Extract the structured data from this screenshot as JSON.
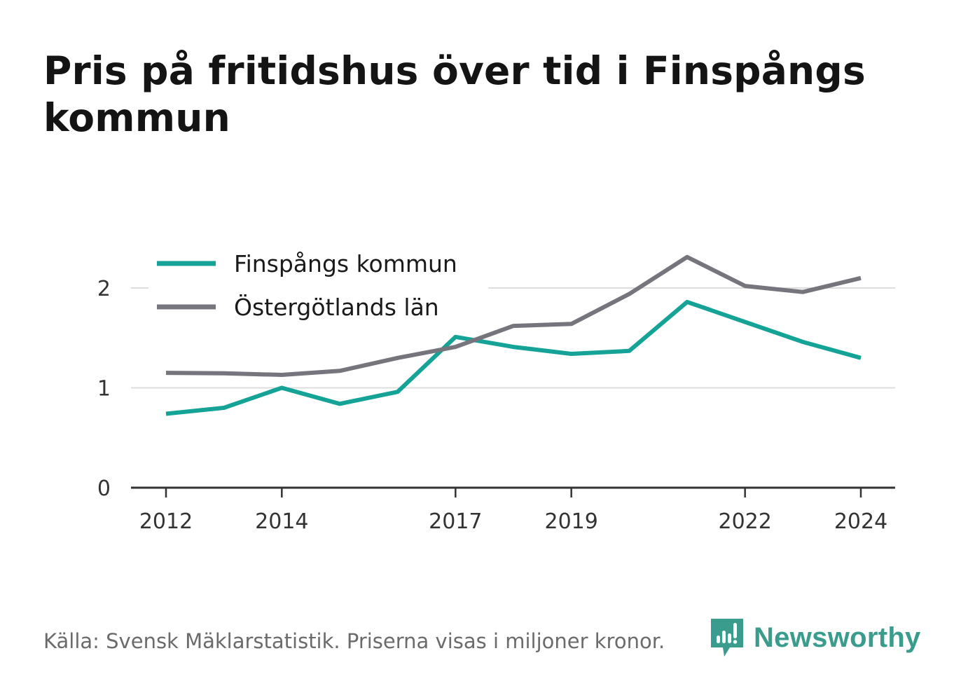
{
  "title": "Pris på fritidshus över tid i Finspångs kommun",
  "source": "Källa: Svensk Mäklarstatistik. Priserna visas i miljoner kronor.",
  "brand": "Newsworthy",
  "colors": {
    "finspang": "#14a396",
    "ostergotland": "#76757d",
    "grid": "#dddddd",
    "axis": "#333333",
    "brand": "#3a9c8d"
  },
  "chart_data": {
    "type": "line",
    "x": [
      2012,
      2013,
      2014,
      2015,
      2016,
      2017,
      2018,
      2019,
      2020,
      2021,
      2022,
      2023,
      2024
    ],
    "x_tick_labels": [
      "2012",
      "2014",
      "2017",
      "2019",
      "2022",
      "2024"
    ],
    "x_tick_values": [
      2012,
      2014,
      2017,
      2019,
      2022,
      2024
    ],
    "y_tick_labels": [
      "0",
      "1",
      "2"
    ],
    "y_tick_values": [
      0,
      1,
      2
    ],
    "ylim": [
      0,
      2.5
    ],
    "grid": true,
    "legend_position": "top-left",
    "series": [
      {
        "name": "Finspångs kommun",
        "color": "#14a396",
        "values": [
          0.74,
          0.8,
          1.0,
          0.84,
          0.96,
          1.51,
          1.41,
          1.34,
          1.37,
          1.86,
          1.66,
          1.46,
          1.3
        ]
      },
      {
        "name": "Östergötlands län",
        "color": "#76757d",
        "values": [
          1.15,
          1.145,
          1.13,
          1.17,
          1.3,
          1.41,
          1.62,
          1.64,
          1.94,
          2.31,
          2.02,
          1.96,
          2.1
        ]
      }
    ]
  }
}
